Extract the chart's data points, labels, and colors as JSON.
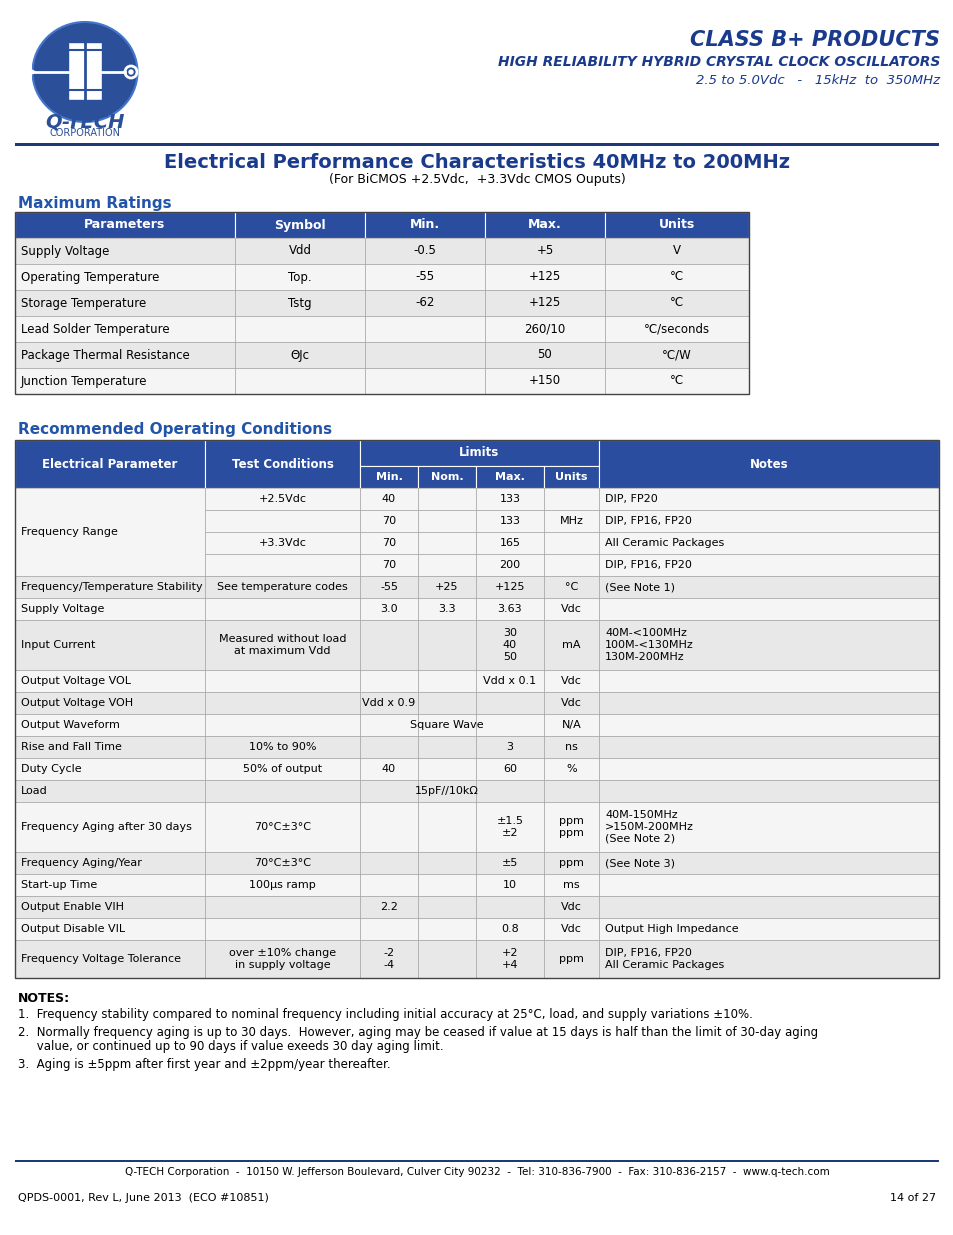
{
  "page_bg": "#ffffff",
  "header_blue": "#1f3a7a",
  "title_blue": "#1a3a8c",
  "section_header_blue": "#2255aa",
  "table_header_bg": "#2b4da0",
  "table_row_light": "#e8e8e8",
  "table_row_white": "#f5f5f5",
  "logo_oval_bg": "#2b5099",
  "class_b_text": "#1a3a8c",
  "company_name": "Q-TECH",
  "corp_text": "CORPORATION",
  "class_b_line1": "CLASS B+ PRODUCTS",
  "class_b_line2": "HIGH RELIABILITY HYBRID CRYSTAL CLOCK OSCILLATORS",
  "class_b_line3": "2.5 to 5.0Vdc   -   15kHz  to  350MHz",
  "main_title": "Electrical Performance Characteristics 40MHz to 200MHz",
  "main_subtitle": "(For BiCMOS +2.5Vdc,  +3.3Vdc CMOS Ouputs)",
  "section1_title": "Maximum Ratings",
  "max_ratings_headers": [
    "Parameters",
    "Symbol",
    "Min.",
    "Max.",
    "Units"
  ],
  "max_ratings_col_w": [
    220,
    130,
    120,
    120,
    144
  ],
  "max_ratings_rows": [
    [
      "Supply Voltage",
      "Vdd",
      "-0.5",
      "+5",
      "V"
    ],
    [
      "Operating Temperature",
      "Top.",
      "-55",
      "+125",
      "°C"
    ],
    [
      "Storage Temperature",
      "Tstg",
      "-62",
      "+125",
      "°C"
    ],
    [
      "Lead Solder Temperature",
      "",
      "",
      "260/10",
      "°C/seconds"
    ],
    [
      "Package Thermal Resistance",
      "ΘJc",
      "",
      "50",
      "°C/W"
    ],
    [
      "Junction Temperature",
      "",
      "",
      "+150",
      "°C"
    ]
  ],
  "section2_title": "Recommended Operating Conditions",
  "rec_col_w": [
    190,
    155,
    58,
    58,
    68,
    55,
    150
  ],
  "notes_title": "NOTES:",
  "note1": "1.  Frequency stability compared to nominal frequency including initial accuracy at 25°C, load, and supply variations ±10%.",
  "note2a": "2.  Normally frequency aging is up to 30 days.  However, aging may be ceased if value at 15 days is half than the limit of 30-day aging",
  "note2b": "     value, or continued up to 90 days if value exeeds 30 day aging limit.",
  "note3": "3.  Aging is ±5ppm after first year and ±2ppm/year thereafter.",
  "footer_line": "Q-TECH Corporation  -  10150 W. Jefferson Boulevard, Culver City 90232  -  Tel: 310-836-7900  -  Fax: 310-836-2157  -  www.q-tech.com",
  "footer_doc": "QPDS-0001, Rev L, June 2013  (ECO #10851)",
  "footer_page": "14 of 27"
}
